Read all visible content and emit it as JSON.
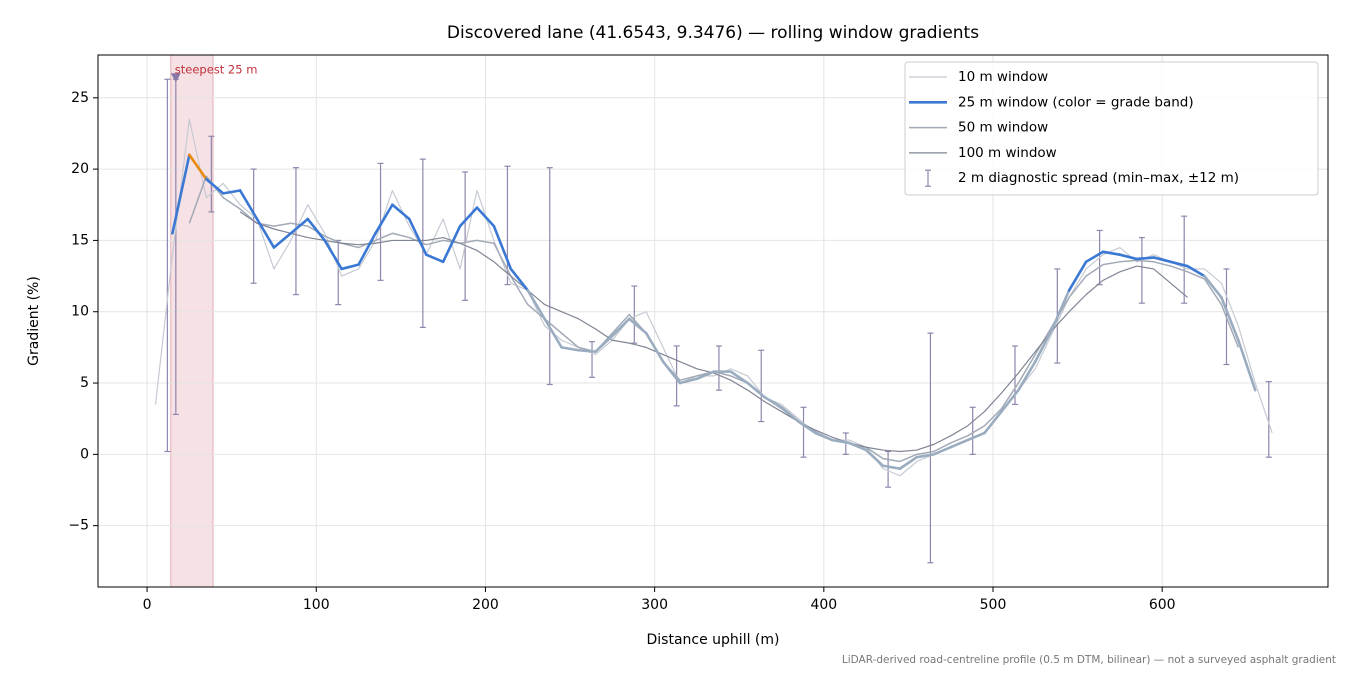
{
  "chart_data": {
    "type": "line",
    "title": "Discovered lane (41.6543, 9.3476) — rolling window gradients",
    "x_label": "Distance uphill (m)",
    "y_label": "Gradient (%)",
    "footnote": "LiDAR-derived road-centreline profile (0.5 m DTM, bilinear) — not a surveyed asphalt gradient",
    "xlim": [
      -29,
      698
    ],
    "ylim": [
      -9.3,
      28
    ],
    "xticks": [
      0,
      100,
      200,
      300,
      400,
      500,
      600
    ],
    "yticks": [
      {
        "value": -5,
        "label": "−5"
      },
      0,
      5,
      10,
      15,
      20,
      25
    ],
    "grid": true,
    "legend": "upper right",
    "x": [
      5,
      15,
      25,
      35,
      45,
      55,
      65,
      75,
      85,
      95,
      105,
      115,
      125,
      135,
      145,
      155,
      165,
      175,
      185,
      195,
      205,
      215,
      225,
      235,
      245,
      255,
      265,
      275,
      285,
      295,
      305,
      315,
      325,
      335,
      345,
      355,
      365,
      375,
      385,
      395,
      405,
      415,
      425,
      435,
      445,
      455,
      465,
      475,
      485,
      495,
      505,
      515,
      525,
      535,
      545,
      555,
      565,
      575,
      585,
      595,
      605,
      615,
      625,
      635,
      645,
      655,
      665
    ],
    "series": [
      {
        "name": "10 m window",
        "color": "#c6cad3",
        "width": 1.2,
        "values": [
          3.5,
          14,
          23.5,
          18,
          19,
          17.5,
          16.5,
          13,
          15,
          17.5,
          15.5,
          12.5,
          13,
          15,
          18.5,
          16,
          14,
          16.5,
          13,
          18.5,
          15,
          12,
          11.5,
          9,
          8,
          7.5,
          7,
          8,
          9.5,
          10,
          7.5,
          5,
          5.5,
          5.5,
          6,
          5.5,
          4,
          3.5,
          2.5,
          1.5,
          1,
          1,
          0.5,
          -1,
          -1.5,
          -0.5,
          0,
          0.5,
          1,
          1.5,
          3,
          4.5,
          6,
          8.5,
          11,
          13,
          14,
          14.5,
          13.5,
          14,
          13.5,
          13,
          13,
          12,
          9,
          5,
          1.5
        ]
      },
      {
        "name": "25 m window (color = grade band)",
        "color": "#3a78d4",
        "width": 2.6,
        "bands": [
          {
            "below": 12,
            "color": "#9aacc0"
          },
          {
            "above": 20,
            "color": "#e88a0c"
          }
        ],
        "values": [
          null,
          15.5,
          21,
          19.3,
          18.3,
          18.5,
          16.5,
          14.5,
          15.5,
          16.5,
          15,
          13,
          13.3,
          15.5,
          17.5,
          16.5,
          14,
          13.5,
          16,
          17.3,
          16,
          13,
          11.5,
          9.5,
          7.5,
          7.3,
          7.2,
          8.3,
          9.5,
          8.5,
          6.5,
          5,
          5.3,
          5.8,
          5.8,
          5,
          4,
          3.3,
          2.3,
          1.5,
          1,
          0.8,
          0.3,
          -0.8,
          -1,
          -0.2,
          0,
          0.5,
          1,
          1.5,
          3,
          4.5,
          6.5,
          8.8,
          11.5,
          13.5,
          14.2,
          14,
          13.7,
          13.8,
          13.5,
          13.2,
          12.5,
          11,
          8,
          4.5,
          null
        ]
      },
      {
        "name": "50 m window",
        "color": "#a2aab7",
        "width": 1.5,
        "values": [
          null,
          null,
          16.2,
          19.5,
          18,
          17.2,
          16.2,
          16,
          16.2,
          16,
          15.3,
          14.8,
          14.5,
          15,
          15.5,
          15.2,
          14.7,
          15,
          14.8,
          15,
          14.8,
          12.5,
          10.5,
          9.5,
          8.5,
          7.5,
          7.2,
          8.5,
          9.8,
          8.5,
          6.5,
          5.2,
          5.5,
          5.8,
          5.5,
          5,
          4,
          3.2,
          2.3,
          1.6,
          1,
          0.8,
          0.5,
          -0.3,
          -0.5,
          0,
          0.2,
          0.8,
          1.3,
          2,
          3.2,
          5,
          7,
          9,
          11,
          12.5,
          13.3,
          13.5,
          13.6,
          13.5,
          13.2,
          12.8,
          12.3,
          10.5,
          7.5,
          null,
          null
        ]
      },
      {
        "name": "100 m window",
        "color": "#7f8593",
        "width": 1.2,
        "values": [
          null,
          null,
          null,
          null,
          null,
          17,
          16.2,
          15.8,
          15.5,
          15.2,
          15,
          14.8,
          14.7,
          14.8,
          15,
          15,
          15,
          15.2,
          14.8,
          14.3,
          13.5,
          12.5,
          11.5,
          10.5,
          10,
          9.5,
          8.8,
          8,
          7.8,
          7.5,
          7,
          6.5,
          6,
          5.7,
          5.2,
          4.5,
          3.7,
          3,
          2.3,
          1.7,
          1.2,
          0.8,
          0.5,
          0.3,
          0.2,
          0.3,
          0.7,
          1.3,
          2,
          3,
          4.3,
          5.7,
          7.2,
          8.7,
          10,
          11.2,
          12.2,
          12.8,
          13.2,
          13,
          12,
          11,
          null,
          null,
          null,
          null,
          null
        ]
      }
    ],
    "errorbars": {
      "name": "2 m diagnostic spread (min–max, ±12 m)",
      "color": "#8e86ad",
      "x": [
        12,
        17,
        38,
        63,
        88,
        113,
        138,
        163,
        188,
        213,
        238,
        263,
        288,
        313,
        338,
        363,
        388,
        413,
        438,
        463,
        488,
        513,
        538,
        563,
        588,
        613,
        638,
        663
      ],
      "low": [
        0.2,
        2.8,
        17,
        12,
        11.2,
        10.5,
        12.2,
        8.9,
        10.8,
        11.9,
        4.9,
        5.4,
        7.8,
        3.4,
        4.5,
        2.3,
        -0.2,
        0,
        -2.3,
        -7.6,
        0,
        3.5,
        6.4,
        11.9,
        10.6,
        10.6,
        6.3,
        -0.2
      ],
      "high": [
        26.3,
        26.3,
        22.3,
        20,
        20.1,
        15,
        20.4,
        20.7,
        19.8,
        20.2,
        20.1,
        7.9,
        11.8,
        7.6,
        7.6,
        7.3,
        3.3,
        1.5,
        0.2,
        8.5,
        3.3,
        7.6,
        13,
        15.7,
        15.2,
        16.7,
        13,
        5.1
      ]
    },
    "highlight": {
      "label": "steepest 25 m",
      "xrange": [
        14,
        39
      ],
      "color": "#e8b4bc",
      "label_color": "#c0303a",
      "marker_x": 17,
      "marker_y": 26.3,
      "marker_color": "#8878a8"
    }
  }
}
